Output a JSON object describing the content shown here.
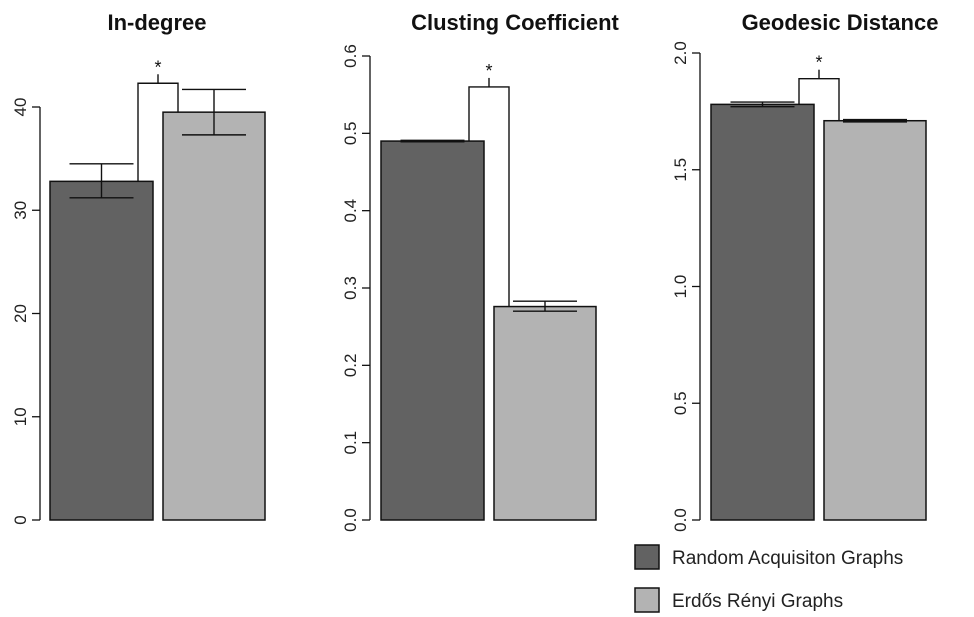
{
  "chart_data": [
    {
      "type": "bar",
      "title": "In-degree",
      "categories": [
        "Random Acquisiton Graphs",
        "Erdős Rényi Graphs"
      ],
      "values": [
        32.8,
        39.5
      ],
      "error_low": [
        31.2,
        37.3
      ],
      "error_high": [
        34.5,
        41.7
      ],
      "ylim": [
        0,
        45
      ],
      "yticks": [
        "0",
        "10",
        "20",
        "30",
        "40"
      ],
      "significance": {
        "label": "*",
        "level": 42.3
      }
    },
    {
      "type": "bar",
      "title": "Clusting Coefficient",
      "categories": [
        "Random Acquisiton Graphs",
        "Erdős Rényi Graphs"
      ],
      "values": [
        0.49,
        0.276
      ],
      "error_low": [
        0.489,
        0.27
      ],
      "error_high": [
        0.491,
        0.283
      ],
      "ylim": [
        0,
        0.6
      ],
      "yticks": [
        "0.0",
        "0.1",
        "0.2",
        "0.3",
        "0.4",
        "0.5",
        "0.6"
      ],
      "significance": {
        "label": "*",
        "level": 0.56
      }
    },
    {
      "type": "bar",
      "title": "Geodesic Distance",
      "categories": [
        "Random Acquisiton Graphs",
        "Erdős Rényi Graphs"
      ],
      "values": [
        1.78,
        1.71
      ],
      "error_low": [
        1.77,
        1.705
      ],
      "error_high": [
        1.79,
        1.715
      ],
      "ylim": [
        0,
        2.0
      ],
      "yticks": [
        "0.0",
        "0.5",
        "1.0",
        "1.5",
        "2.0"
      ],
      "significance": {
        "label": "*",
        "level": 1.89
      }
    }
  ],
  "legend": {
    "placement": "bottom-right",
    "items": [
      {
        "label": "Random Acquisiton Graphs",
        "color": "#626262"
      },
      {
        "label": "Erdős Rényi Graphs",
        "color": "#b3b3b3"
      }
    ]
  },
  "colors": {
    "series_1": "#626262",
    "series_2": "#b3b3b3",
    "stroke": "#111111"
  }
}
